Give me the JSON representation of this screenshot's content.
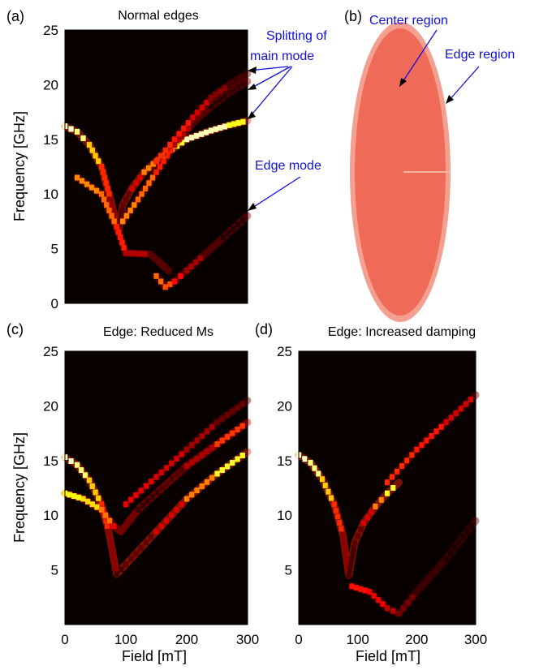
{
  "chart_data": [
    {
      "panel": "(a)",
      "type": "heatmap",
      "title": "Normal edges",
      "xlabel": "",
      "ylabel": "Frequency  [GHz]",
      "xlim": [
        0,
        300
      ],
      "ylim": [
        0,
        25
      ],
      "yticks": [
        "0",
        "5",
        "10",
        "15",
        "20",
        "25"
      ],
      "colormap": "hot",
      "annotations": [
        "Splitting of",
        "main mode",
        "Edge mode"
      ],
      "series": [
        {
          "x": [
            0,
            20,
            40,
            60,
            75,
            88,
            95,
            110,
            130,
            160,
            200,
            240,
            270,
            300
          ],
          "y": [
            16.2,
            15.7,
            14.5,
            12.5,
            9.5,
            6.5,
            9.0,
            10.5,
            12.0,
            13.5,
            15.0,
            15.8,
            16.3,
            16.7
          ],
          "intensity": 1.0
        },
        {
          "x": [
            95,
            120,
            150,
            180,
            210,
            240,
            270,
            300
          ],
          "y": [
            7.5,
            9.5,
            12.0,
            14.5,
            16.5,
            18.0,
            19.3,
            20.3
          ],
          "intensity": 0.6
        },
        {
          "x": [
            150,
            180,
            210,
            240,
            270,
            300
          ],
          "y": [
            13.0,
            15.0,
            17.0,
            18.8,
            20.0,
            21.0
          ],
          "intensity": 0.45
        },
        {
          "x": [
            20,
            60,
            85,
            100,
            140,
            170
          ],
          "y": [
            11.5,
            10.0,
            7.0,
            4.6,
            4.5,
            3.0
          ],
          "intensity": 0.6
        },
        {
          "x": [
            150,
            165,
            180,
            200,
            230,
            260,
            300
          ],
          "y": [
            2.5,
            1.5,
            2.0,
            3.0,
            4.5,
            6.0,
            8.0
          ],
          "intensity": 0.55
        }
      ]
    },
    {
      "panel": "(b)",
      "type": "diagram",
      "labels": [
        "Center region",
        "Edge region"
      ],
      "colors": {
        "edge": "#f5a090",
        "center": "#f06a58"
      }
    },
    {
      "panel": "(c)",
      "type": "heatmap",
      "title": "Edge: Reduced Ms",
      "xlabel": "Field  [mT]",
      "ylabel": "Frequency  [GHz]",
      "xlim": [
        0,
        300
      ],
      "ylim": [
        0,
        25
      ],
      "xticks": [
        "0",
        "100",
        "200",
        "300"
      ],
      "yticks": [
        "5",
        "10",
        "15",
        "20",
        "25"
      ],
      "colormap": "hot",
      "series": [
        {
          "x": [
            0,
            20,
            40,
            60,
            72,
            85,
            100,
            150,
            200,
            250,
            300
          ],
          "y": [
            15.3,
            14.6,
            13.2,
            11.0,
            8.5,
            4.6,
            5.5,
            8.5,
            11.5,
            13.8,
            15.8
          ],
          "intensity": 1.0
        },
        {
          "x": [
            0,
            30,
            60,
            80,
            92,
            120,
            160,
            200,
            250,
            300
          ],
          "y": [
            12.0,
            11.5,
            10.5,
            9.0,
            8.5,
            10.5,
            12.5,
            14.5,
            16.5,
            18.5
          ],
          "intensity": 0.8
        },
        {
          "x": [
            100,
            150,
            200,
            250,
            300
          ],
          "y": [
            11.0,
            13.5,
            16.0,
            18.5,
            20.5
          ],
          "intensity": 0.35
        }
      ]
    },
    {
      "panel": "(d)",
      "type": "heatmap",
      "title": "Edge: Increased damping",
      "xlabel": "Field  [mT]",
      "ylabel": "",
      "xlim": [
        0,
        300
      ],
      "ylim": [
        0,
        25
      ],
      "xticks": [
        "0",
        "100",
        "200",
        "300"
      ],
      "yticks": [
        "5",
        "10",
        "15",
        "20",
        "25"
      ],
      "colormap": "hot",
      "series": [
        {
          "x": [
            0,
            20,
            40,
            60,
            75,
            85,
            95,
            110,
            130,
            150,
            170
          ],
          "y": [
            15.5,
            14.8,
            13.3,
            11.0,
            8.2,
            4.5,
            7.5,
            9.3,
            10.8,
            12.0,
            13.0
          ],
          "intensity": 1.0
        },
        {
          "x": [
            150,
            200,
            250,
            300
          ],
          "y": [
            13.0,
            16.0,
            18.5,
            21.0
          ],
          "intensity": 0.45
        },
        {
          "x": [
            90,
            120,
            150,
            170,
            200,
            250,
            300
          ],
          "y": [
            3.5,
            3.0,
            1.5,
            1.0,
            3.0,
            6.0,
            9.5
          ],
          "intensity": 0.4
        }
      ]
    }
  ]
}
